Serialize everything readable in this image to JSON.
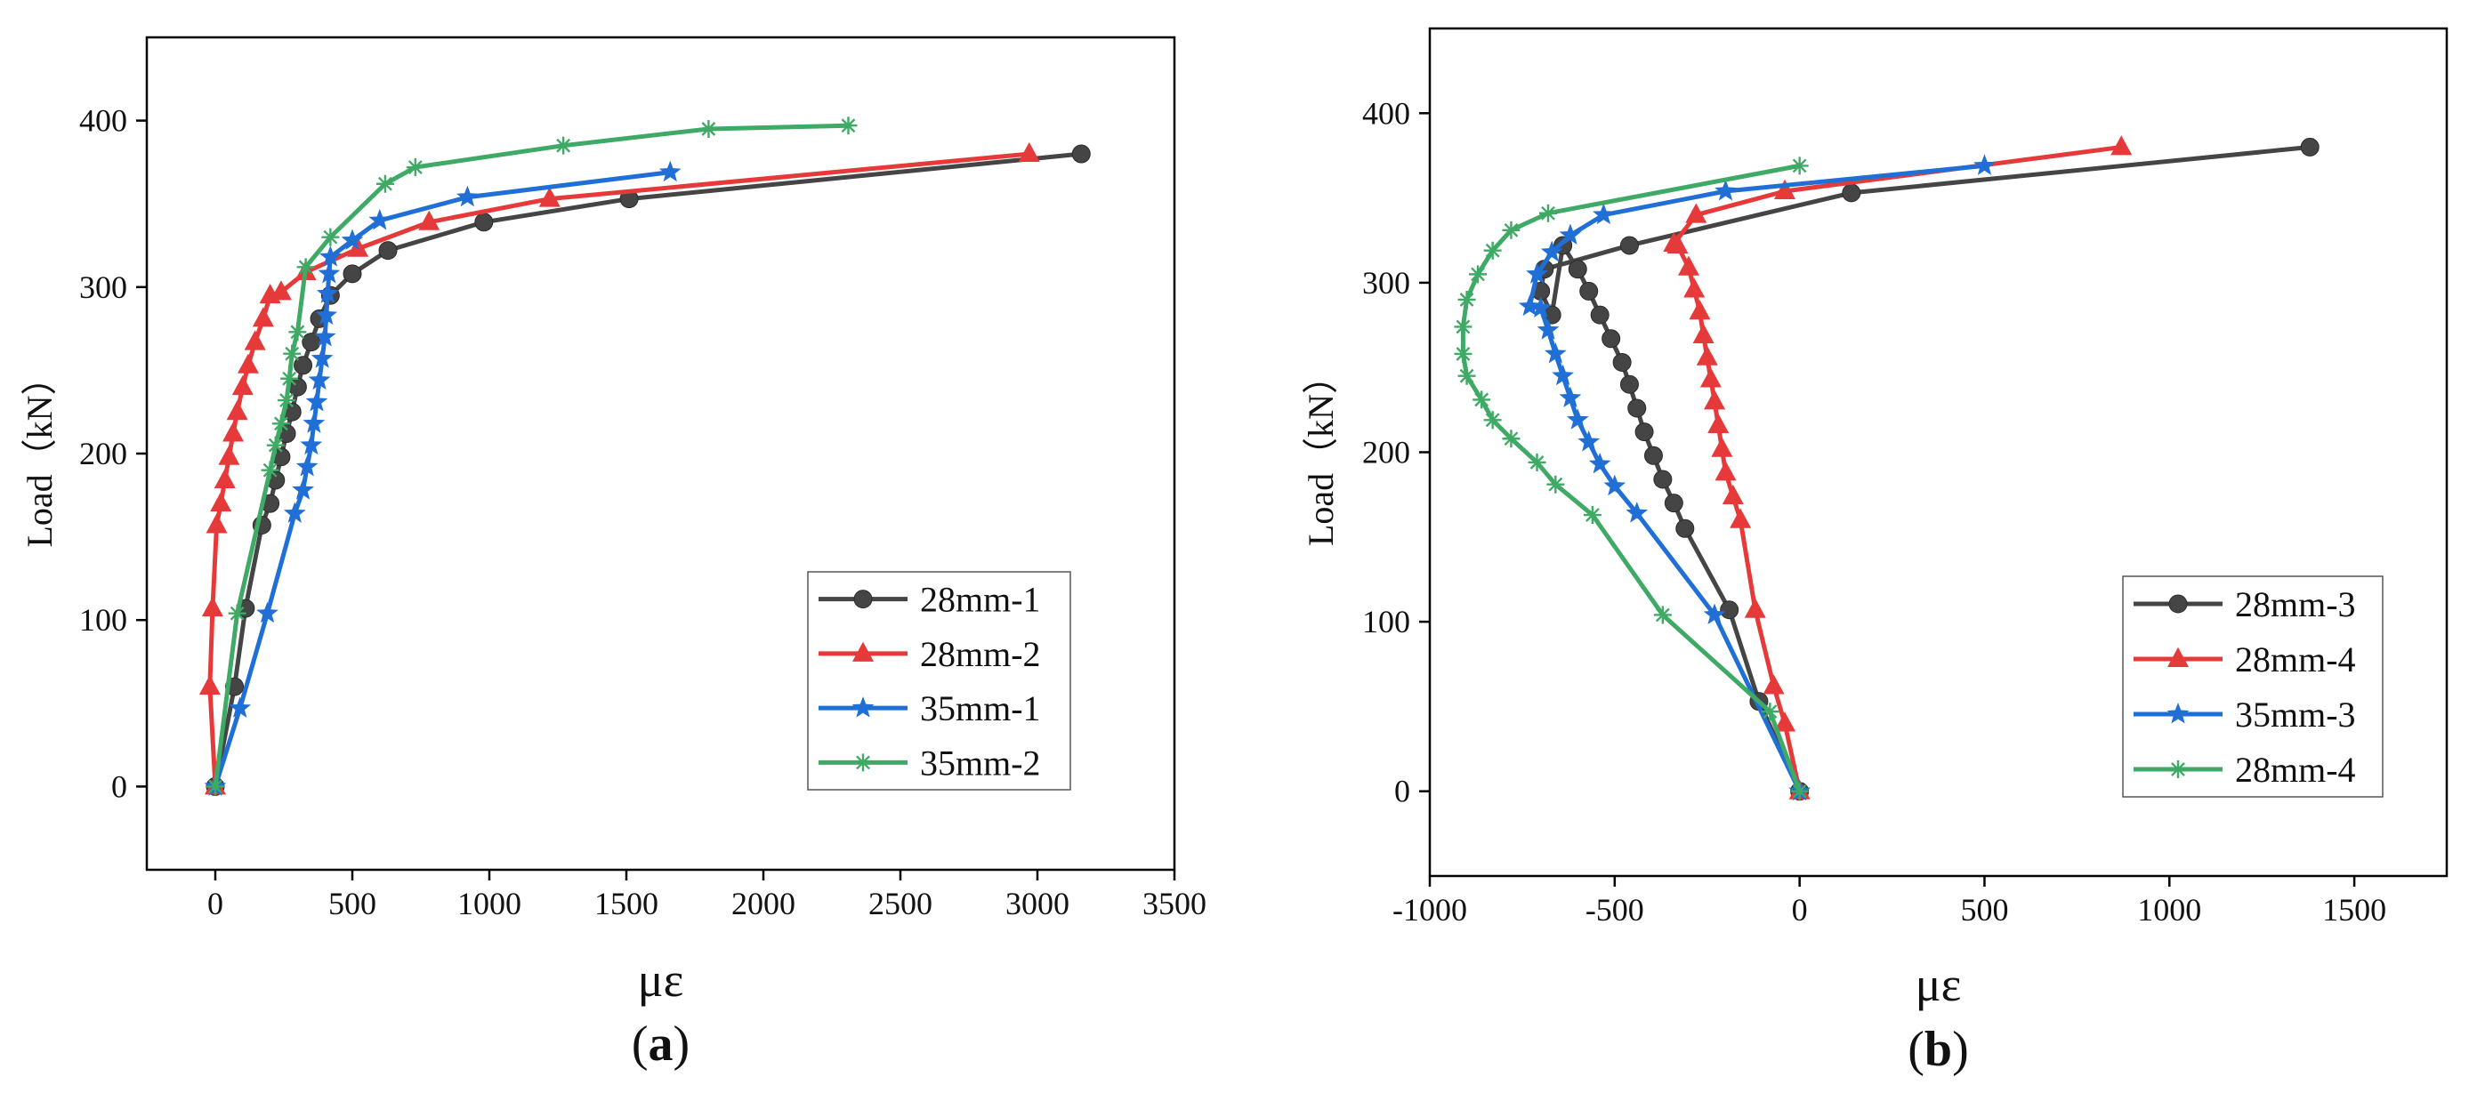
{
  "chart_data": [
    {
      "type": "line",
      "panel_label": "a",
      "xlabel": "με",
      "ylabel": "Load（kN）",
      "xlim": [
        -250,
        3500
      ],
      "ylim": [
        -50,
        450
      ],
      "xticks": [
        0,
        500,
        1000,
        1500,
        2000,
        2500,
        3000,
        3500
      ],
      "yticks": [
        0,
        100,
        200,
        300,
        400
      ],
      "legend_position": "bottom-right",
      "series": [
        {
          "name": "28mm-1",
          "color": "#454545",
          "marker": "circle",
          "x": [
            0,
            70,
            110,
            170,
            200,
            220,
            240,
            260,
            280,
            300,
            320,
            350,
            380,
            420,
            500,
            630,
            980,
            1510,
            3160
          ],
          "y": [
            0,
            60,
            107,
            157,
            170,
            184,
            198,
            212,
            225,
            240,
            253,
            267,
            281,
            295,
            308,
            322,
            339,
            353,
            380
          ]
        },
        {
          "name": "28mm-2",
          "color": "#e63a3a",
          "marker": "triangle",
          "x": [
            0,
            -20,
            -10,
            5,
            20,
            35,
            50,
            65,
            80,
            100,
            120,
            145,
            175,
            200,
            240,
            330,
            520,
            780,
            1220,
            2970
          ],
          "y": [
            0,
            60,
            107,
            157,
            170,
            184,
            198,
            212,
            225,
            240,
            253,
            267,
            281,
            295,
            297,
            309,
            323,
            339,
            353,
            380
          ]
        },
        {
          "name": "35mm-1",
          "color": "#1f6fd6",
          "marker": "star",
          "x": [
            0,
            90,
            190,
            290,
            320,
            335,
            350,
            360,
            370,
            380,
            390,
            400,
            405,
            410,
            415,
            420,
            500,
            600,
            920,
            1660
          ],
          "y": [
            0,
            47,
            104,
            164,
            178,
            192,
            205,
            218,
            231,
            244,
            257,
            270,
            283,
            296,
            308,
            318,
            328,
            340,
            354,
            369
          ]
        },
        {
          "name": "35mm-2",
          "color": "#3faa66",
          "marker": "asterisk",
          "x": [
            0,
            80,
            200,
            220,
            240,
            260,
            270,
            280,
            300,
            330,
            420,
            620,
            730,
            1270,
            1800,
            2310
          ],
          "y": [
            0,
            104,
            190,
            205,
            218,
            232,
            245,
            260,
            273,
            312,
            330,
            362,
            372,
            385,
            395,
            397
          ]
        }
      ]
    },
    {
      "type": "line",
      "panel_label": "b",
      "xlabel": "με",
      "ylabel": "Load（kN）",
      "xlim": [
        -1000,
        1750
      ],
      "ylim": [
        -50,
        450
      ],
      "xticks": [
        -1000,
        -500,
        0,
        500,
        1000,
        1500
      ],
      "yticks": [
        0,
        100,
        200,
        300,
        400
      ],
      "legend_position": "bottom-right",
      "series": [
        {
          "name": "28mm-3",
          "color": "#454545",
          "marker": "circle",
          "x": [
            0,
            -110,
            -190,
            -310,
            -340,
            -370,
            -395,
            -420,
            -440,
            -460,
            -480,
            -510,
            -540,
            -570,
            -600,
            -640,
            -670,
            -700,
            -690,
            -460,
            140,
            1380
          ],
          "y": [
            0,
            53,
            107,
            155,
            170,
            184,
            198,
            212,
            226,
            240,
            253,
            267,
            281,
            295,
            308,
            322,
            281,
            295,
            308,
            322,
            353,
            380
          ]
        },
        {
          "name": "28mm-4",
          "color": "#e63a3a",
          "marker": "triangle",
          "x": [
            0,
            -40,
            -70,
            -120,
            -160,
            -180,
            -200,
            -210,
            -220,
            -230,
            -240,
            -250,
            -260,
            -270,
            -285,
            -300,
            -330,
            -340,
            -280,
            -40,
            870
          ],
          "y": [
            0,
            40,
            62,
            107,
            160,
            174,
            188,
            202,
            216,
            230,
            243,
            256,
            269,
            283,
            296,
            309,
            322,
            323,
            340,
            354,
            380
          ]
        },
        {
          "name": "35mm-3",
          "color": "#1f6fd6",
          "marker": "star",
          "x": [
            0,
            -230,
            -440,
            -500,
            -540,
            -570,
            -600,
            -620,
            -640,
            -660,
            -680,
            -700,
            -730,
            -710,
            -670,
            -620,
            -530,
            -200,
            500
          ],
          "y": [
            0,
            104,
            164,
            180,
            193,
            206,
            219,
            232,
            245,
            258,
            272,
            285,
            286,
            305,
            318,
            328,
            340,
            354,
            369
          ]
        },
        {
          "name": "28mm-4",
          "color": "#3faa66",
          "marker": "asterisk",
          "x": [
            0,
            -80,
            -370,
            -560,
            -660,
            -710,
            -780,
            -830,
            -860,
            -900,
            -910,
            -910,
            -900,
            -870,
            -830,
            -780,
            -680,
            0
          ],
          "y": [
            0,
            47,
            104,
            163,
            181,
            194,
            208,
            219,
            231,
            245,
            258,
            274,
            290,
            305,
            319,
            331,
            341,
            369
          ]
        }
      ]
    }
  ]
}
